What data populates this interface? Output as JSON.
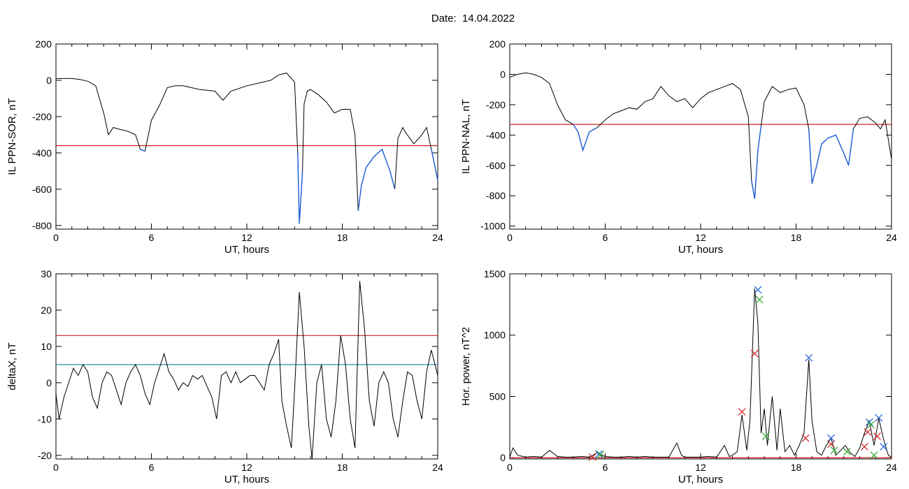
{
  "figure": {
    "title": "Date:  14.04.2022"
  },
  "colors": {
    "trace": "#000000",
    "highlight": "#1f5fd8",
    "red_line": "#d02020",
    "teal_line": "#2a8aa8",
    "green_mark": "#2aa82a"
  },
  "chart_data": [
    {
      "type": "line",
      "xlabel": "UT, hours",
      "ylabel": "IL PPN-SOR, nT",
      "xlim": [
        0,
        24
      ],
      "ylim": [
        -820,
        200
      ],
      "xticks": [
        0,
        6,
        12,
        18,
        24
      ],
      "yticks": [
        200,
        0,
        -200,
        -400,
        -600,
        -800
      ],
      "threshold": -360,
      "series": [
        {
          "x": [
            0,
            0.5,
            1,
            1.5,
            2,
            2.5,
            3,
            3.3,
            3.6,
            4,
            4.5,
            5,
            5.3,
            5.6,
            6,
            6.5,
            7,
            7.5,
            8,
            9,
            10,
            10.5,
            11,
            12,
            13,
            13.5,
            14,
            14.5,
            15,
            15.2,
            15.3,
            15.5,
            15.6,
            15.8,
            16,
            16.5,
            17,
            17.5,
            18,
            18.5,
            18.8,
            19,
            19.2,
            19.5,
            20,
            20.5,
            21,
            21.3,
            21.5,
            21.8,
            22,
            22.5,
            23,
            23.3,
            23.6,
            24
          ],
          "y": [
            10,
            10,
            10,
            5,
            -5,
            -30,
            -180,
            -300,
            -260,
            -270,
            -280,
            -300,
            -380,
            -390,
            -220,
            -140,
            -40,
            -30,
            -30,
            -50,
            -60,
            -110,
            -60,
            -30,
            -10,
            0,
            30,
            40,
            -10,
            -400,
            -790,
            -500,
            -130,
            -60,
            -50,
            -80,
            -120,
            -180,
            -160,
            -160,
            -300,
            -720,
            -580,
            -480,
            -420,
            -380,
            -500,
            -600,
            -320,
            -260,
            -290,
            -350,
            -300,
            -260,
            -380,
            -550
          ]
        }
      ]
    },
    {
      "type": "line",
      "xlabel": "UT, hours",
      "ylabel": "IL PPN-NAL, nT",
      "xlim": [
        0,
        24
      ],
      "ylim": [
        -1020,
        200
      ],
      "xticks": [
        0,
        6,
        12,
        18,
        24
      ],
      "yticks": [
        200,
        0,
        -200,
        -400,
        -600,
        -800,
        -1000
      ],
      "threshold": -330,
      "series": [
        {
          "x": [
            0,
            0.5,
            1,
            1.5,
            2,
            2.5,
            3,
            3.5,
            4,
            4.3,
            4.6,
            5,
            5.5,
            6,
            6.5,
            7,
            7.5,
            8,
            8.5,
            9,
            9.5,
            10,
            10.5,
            11,
            11.5,
            12,
            12.5,
            13,
            13.5,
            14,
            14.5,
            15,
            15.2,
            15.4,
            15.6,
            15.8,
            16,
            16.5,
            17,
            17.5,
            18,
            18.5,
            18.8,
            19,
            19.3,
            19.6,
            20,
            20.5,
            21,
            21.3,
            21.6,
            22,
            22.5,
            23,
            23.3,
            23.6,
            24
          ],
          "y": [
            -20,
            0,
            10,
            0,
            -20,
            -60,
            -200,
            -300,
            -330,
            -380,
            -500,
            -380,
            -350,
            -300,
            -260,
            -240,
            -220,
            -230,
            -180,
            -160,
            -80,
            -140,
            -180,
            -160,
            -220,
            -160,
            -120,
            -100,
            -80,
            -60,
            -100,
            -280,
            -700,
            -820,
            -500,
            -340,
            -180,
            -80,
            -120,
            -100,
            -90,
            -200,
            -360,
            -720,
            -600,
            -460,
            -420,
            -400,
            -520,
            -600,
            -360,
            -290,
            -280,
            -320,
            -360,
            -300,
            -560
          ]
        }
      ]
    },
    {
      "type": "line",
      "xlabel": "UT, hours",
      "ylabel": "deltaX, nT",
      "xlim": [
        0,
        24
      ],
      "ylim": [
        -21,
        30
      ],
      "xticks": [
        0,
        6,
        12,
        18,
        24
      ],
      "yticks": [
        30,
        20,
        10,
        0,
        -10,
        -20
      ],
      "threshold": 13,
      "threshold2": 5,
      "series": [
        {
          "x": [
            0,
            0.2,
            0.5,
            0.8,
            1.1,
            1.4,
            1.7,
            2,
            2.3,
            2.6,
            2.9,
            3.2,
            3.5,
            3.8,
            4.1,
            4.4,
            4.7,
            5,
            5.3,
            5.6,
            5.9,
            6.2,
            6.5,
            6.8,
            7.1,
            7.4,
            7.7,
            8,
            8.3,
            8.6,
            8.9,
            9.2,
            9.5,
            9.8,
            10.1,
            10.4,
            10.7,
            11,
            11.3,
            11.6,
            11.9,
            12.2,
            12.5,
            12.8,
            13.1,
            13.4,
            13.7,
            14,
            14.2,
            14.5,
            14.8,
            15,
            15.3,
            15.6,
            15.9,
            16.1,
            16.4,
            16.7,
            17,
            17.3,
            17.6,
            17.9,
            18.2,
            18.5,
            18.8,
            19.1,
            19.4,
            19.7,
            20,
            20.3,
            20.6,
            20.9,
            21.2,
            21.5,
            21.8,
            22.1,
            22.4,
            22.7,
            23,
            23.3,
            23.6,
            24
          ],
          "y": [
            -3,
            -10,
            -4,
            0,
            4,
            2,
            5,
            3,
            -4,
            -7,
            0,
            3,
            2,
            -2,
            -6,
            0,
            3,
            5,
            2,
            -3,
            -6,
            0,
            4,
            8,
            3,
            1,
            -2,
            0,
            -1,
            2,
            1,
            2,
            -1,
            -4,
            -10,
            2,
            3,
            0,
            3,
            0,
            1,
            2,
            2,
            0,
            -2,
            5,
            8,
            12,
            -5,
            -12,
            -18,
            -2,
            25,
            10,
            -12,
            -21,
            0,
            5,
            -10,
            -15,
            -5,
            13,
            5,
            -10,
            -18,
            28,
            15,
            -5,
            -12,
            0,
            3,
            0,
            -10,
            -15,
            -5,
            3,
            2,
            -5,
            -10,
            3,
            9,
            2
          ]
        }
      ]
    },
    {
      "type": "line",
      "xlabel": "UT, hours",
      "ylabel": "Hor. power, nT^2",
      "xlim": [
        0,
        24
      ],
      "ylim": [
        -10,
        1500
      ],
      "xticks": [
        0,
        6,
        12,
        18,
        24
      ],
      "yticks": [
        1500,
        1000,
        500,
        0
      ],
      "threshold": 0,
      "series": [
        {
          "x": [
            0,
            0.2,
            0.5,
            1,
            1.5,
            2,
            2.5,
            3,
            3.5,
            4,
            4.5,
            5,
            5.5,
            6,
            6.5,
            7,
            7.5,
            8,
            8.5,
            9,
            9.5,
            10,
            10.5,
            10.8,
            11,
            11.5,
            12,
            12.5,
            13,
            13.5,
            13.8,
            14,
            14.3,
            14.6,
            14.9,
            15.1,
            15.4,
            15.6,
            15.8,
            16,
            16.2,
            16.5,
            16.8,
            17,
            17.3,
            17.6,
            17.9,
            18.2,
            18.5,
            18.8,
            19,
            19.3,
            19.6,
            19.9,
            20.2,
            20.5,
            20.8,
            21.1,
            21.4,
            21.7,
            22,
            22.3,
            22.6,
            22.9,
            23.2,
            23.5,
            23.8,
            24
          ],
          "y": [
            5,
            80,
            20,
            5,
            10,
            5,
            60,
            10,
            5,
            5,
            10,
            5,
            40,
            10,
            5,
            5,
            10,
            5,
            10,
            5,
            5,
            5,
            120,
            20,
            5,
            5,
            5,
            10,
            5,
            100,
            10,
            20,
            50,
            350,
            60,
            300,
            1380,
            1100,
            200,
            400,
            100,
            500,
            60,
            400,
            50,
            100,
            20,
            100,
            200,
            800,
            300,
            50,
            20,
            100,
            160,
            20,
            60,
            100,
            40,
            10,
            80,
            200,
            300,
            100,
            320,
            150,
            20,
            5
          ]
        }
      ],
      "markers": {
        "blue": [
          [
            15.6,
            1370
          ],
          [
            18.8,
            815
          ],
          [
            20.2,
            160
          ],
          [
            22.6,
            290
          ],
          [
            23.2,
            325
          ],
          [
            23.5,
            90
          ],
          [
            5.6,
            30
          ]
        ],
        "red": [
          [
            14.6,
            375
          ],
          [
            15.4,
            850
          ],
          [
            18.6,
            160
          ],
          [
            20.2,
            110
          ],
          [
            22.3,
            90
          ],
          [
            22.5,
            210
          ],
          [
            23.1,
            175
          ],
          [
            5.2,
            5
          ]
        ],
        "green": [
          [
            15.7,
            1290
          ],
          [
            16.1,
            175
          ],
          [
            5.7,
            25
          ],
          [
            20.4,
            60
          ],
          [
            21.2,
            50
          ],
          [
            22.7,
            270
          ],
          [
            22.9,
            20
          ]
        ]
      }
    }
  ]
}
